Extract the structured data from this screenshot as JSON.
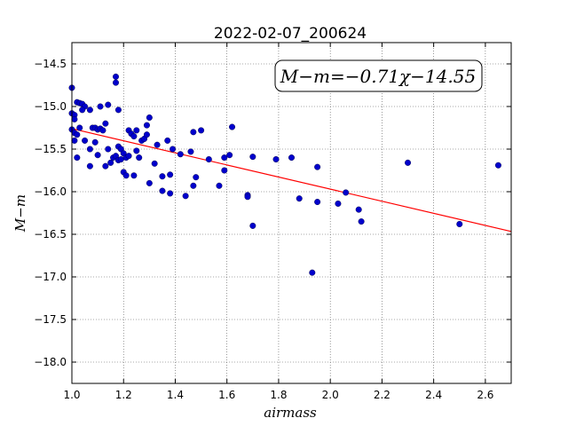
{
  "chart_data": {
    "type": "scatter",
    "title": "2022-02-07_200624",
    "xlabel": "airmass",
    "ylabel": "M−m",
    "xlim": [
      1.0,
      2.7
    ],
    "ylim": [
      -18.25,
      -14.25
    ],
    "y_inverted": false,
    "xticks": [
      1.0,
      1.2,
      1.4,
      1.6,
      1.8,
      2.0,
      2.2,
      2.4,
      2.6
    ],
    "xtick_labels": [
      "1.0",
      "1.2",
      "1.4",
      "1.6",
      "1.8",
      "2.0",
      "2.2",
      "2.4",
      "2.6"
    ],
    "yticks": [
      -14.5,
      -15.0,
      -15.5,
      -16.0,
      -16.5,
      -17.0,
      -17.5,
      -18.0
    ],
    "ytick_labels": [
      "−14.5",
      "−15.0",
      "−15.5",
      "−16.0",
      "−16.5",
      "−17.0",
      "−17.5",
      "−18.0"
    ],
    "grid": true,
    "annotation": "M−m=−0.71χ−14.55",
    "fit": {
      "slope": -0.71,
      "intercept": -14.55,
      "color": "#ff0000"
    },
    "marker_color": "#0000cc",
    "points": [
      [
        1.0,
        -14.78
      ],
      [
        1.0,
        -15.08
      ],
      [
        1.01,
        -15.1
      ],
      [
        1.01,
        -15.15
      ],
      [
        1.0,
        -15.27
      ],
      [
        1.01,
        -15.31
      ],
      [
        1.02,
        -15.33
      ],
      [
        1.01,
        -15.4
      ],
      [
        1.02,
        -14.95
      ],
      [
        1.03,
        -14.96
      ],
      [
        1.04,
        -14.97
      ],
      [
        1.05,
        -15.0
      ],
      [
        1.04,
        -15.04
      ],
      [
        1.03,
        -15.25
      ],
      [
        1.02,
        -15.6
      ],
      [
        1.05,
        -15.4
      ],
      [
        1.07,
        -15.04
      ],
      [
        1.08,
        -15.25
      ],
      [
        1.09,
        -15.25
      ],
      [
        1.1,
        -15.27
      ],
      [
        1.07,
        -15.5
      ],
      [
        1.09,
        -15.42
      ],
      [
        1.1,
        -15.57
      ],
      [
        1.07,
        -15.7
      ],
      [
        1.11,
        -15.0
      ],
      [
        1.11,
        -15.26
      ],
      [
        1.12,
        -15.28
      ],
      [
        1.13,
        -15.2
      ],
      [
        1.14,
        -14.98
      ],
      [
        1.13,
        -15.7
      ],
      [
        1.14,
        -15.5
      ],
      [
        1.15,
        -15.66
      ],
      [
        1.16,
        -15.6
      ],
      [
        1.17,
        -15.58
      ],
      [
        1.17,
        -14.65
      ],
      [
        1.17,
        -14.72
      ],
      [
        1.18,
        -15.04
      ],
      [
        1.18,
        -15.47
      ],
      [
        1.18,
        -15.63
      ],
      [
        1.19,
        -15.62
      ],
      [
        1.19,
        -15.5
      ],
      [
        1.2,
        -15.55
      ],
      [
        1.2,
        -15.77
      ],
      [
        1.21,
        -15.81
      ],
      [
        1.21,
        -15.6
      ],
      [
        1.22,
        -15.58
      ],
      [
        1.22,
        -15.28
      ],
      [
        1.23,
        -15.32
      ],
      [
        1.24,
        -15.35
      ],
      [
        1.24,
        -15.81
      ],
      [
        1.25,
        -15.28
      ],
      [
        1.25,
        -15.52
      ],
      [
        1.26,
        -15.6
      ],
      [
        1.27,
        -15.4
      ],
      [
        1.28,
        -15.38
      ],
      [
        1.29,
        -15.33
      ],
      [
        1.29,
        -15.22
      ],
      [
        1.3,
        -15.13
      ],
      [
        1.3,
        -15.9
      ],
      [
        1.32,
        -15.67
      ],
      [
        1.33,
        -15.45
      ],
      [
        1.35,
        -15.99
      ],
      [
        1.35,
        -15.82
      ],
      [
        1.37,
        -15.4
      ],
      [
        1.38,
        -15.8
      ],
      [
        1.38,
        -16.02
      ],
      [
        1.39,
        -15.5
      ],
      [
        1.42,
        -15.56
      ],
      [
        1.44,
        -16.05
      ],
      [
        1.46,
        -15.53
      ],
      [
        1.47,
        -15.3
      ],
      [
        1.47,
        -15.93
      ],
      [
        1.48,
        -15.83
      ],
      [
        1.5,
        -15.28
      ],
      [
        1.53,
        -15.62
      ],
      [
        1.57,
        -15.93
      ],
      [
        1.59,
        -15.6
      ],
      [
        1.59,
        -15.75
      ],
      [
        1.61,
        -15.57
      ],
      [
        1.62,
        -15.24
      ],
      [
        1.68,
        -16.04
      ],
      [
        1.68,
        -16.06
      ],
      [
        1.7,
        -16.4
      ],
      [
        1.7,
        -15.59
      ],
      [
        1.79,
        -15.62
      ],
      [
        1.85,
        -15.6
      ],
      [
        1.88,
        -16.08
      ],
      [
        1.93,
        -16.95
      ],
      [
        1.95,
        -16.12
      ],
      [
        1.95,
        -15.71
      ],
      [
        2.03,
        -16.14
      ],
      [
        2.06,
        -16.01
      ],
      [
        2.11,
        -16.21
      ],
      [
        2.12,
        -16.35
      ],
      [
        2.3,
        -15.66
      ],
      [
        2.5,
        -16.38
      ],
      [
        2.65,
        -15.69
      ]
    ]
  }
}
